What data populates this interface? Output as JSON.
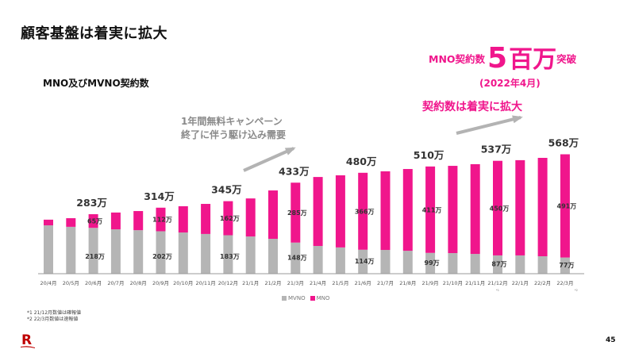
{
  "slide": {
    "title": "顧客基盤は着実に拡大",
    "subtitle": "MNO及びMVNO契約数",
    "page_number": "45",
    "logo_icon": "rakuten-r-logo"
  },
  "headline": {
    "prefix": "MNO契約数",
    "big_number": "5",
    "unit": "百万",
    "suffix": "突破",
    "date": "(2022年4月)",
    "growth_text": "契約数は着実に拡大"
  },
  "annotation": {
    "campaign_line1": "1年間無料キャンペーン",
    "campaign_line2": "終了に伴う駆け込み需要"
  },
  "footnotes": [
    "*1 21/12月数値は確報値",
    "*2 22/3月数値は速報値"
  ],
  "colors": {
    "mno": "#f0168c",
    "mvno": "#b5b5b5",
    "arrow": "#b3b3b3",
    "total_label": "#333333",
    "segment_label": "#333333"
  },
  "chart_data": {
    "type": "bar",
    "stacked": true,
    "title": "MNO及びMVNO契約数",
    "xlabel": "",
    "ylabel": "",
    "unit": "万",
    "categories": [
      "20/4月",
      "20/5月",
      "20/6月",
      "20/7月",
      "20/8月",
      "20/9月",
      "20/10月",
      "20/11月",
      "20/12月",
      "21/1月",
      "21/2月",
      "21/3月",
      "21/4月",
      "21/5月",
      "21/6月",
      "21/7月",
      "21/8月",
      "21/9月",
      "21/10月",
      "21/11月",
      "21/12月",
      "22/1月",
      "22/2月",
      "22/3月"
    ],
    "category_footnote_marks": {
      "20": "*1",
      "23": "*2"
    },
    "series": [
      {
        "name": "MVNO",
        "values": [
          230,
          223,
          218,
          211,
          207,
          202,
          196,
          189,
          183,
          177,
          166,
          148,
          132,
          125,
          114,
          113,
          109,
          99,
          98,
          94,
          87,
          87,
          83,
          77
        ]
      },
      {
        "name": "MNO",
        "values": [
          27,
          41,
          65,
          80,
          91,
          112,
          125,
          143,
          162,
          181,
          230,
          285,
          328,
          343,
          366,
          374,
          389,
          411,
          415,
          427,
          450,
          453,
          468,
          491
        ]
      }
    ],
    "labeled_totals": [
      {
        "index": 2,
        "label": "283万"
      },
      {
        "index": 5,
        "label": "314万"
      },
      {
        "index": 8,
        "label": "345万"
      },
      {
        "index": 11,
        "label": "433万"
      },
      {
        "index": 14,
        "label": "480万"
      },
      {
        "index": 17,
        "label": "510万"
      },
      {
        "index": 20,
        "label": "537万"
      },
      {
        "index": 23,
        "label": "568万"
      }
    ],
    "labeled_segments": [
      {
        "index": 2,
        "mno": "65万",
        "mvno": "218万"
      },
      {
        "index": 5,
        "mno": "112万",
        "mvno": "202万"
      },
      {
        "index": 8,
        "mno": "162万",
        "mvno": "183万"
      },
      {
        "index": 11,
        "mno": "285万",
        "mvno": "148万"
      },
      {
        "index": 14,
        "mno": "366万",
        "mvno": "114万"
      },
      {
        "index": 17,
        "mno": "411万",
        "mvno": "99万"
      },
      {
        "index": 20,
        "mno": "450万",
        "mvno": "87万"
      },
      {
        "index": 23,
        "mno": "491万",
        "mvno": "77万"
      }
    ],
    "ylim": [
      0,
      600
    ],
    "grid": false,
    "y_axis_visible": false,
    "legend": {
      "position": "bottom-center",
      "entries": [
        "MVNO",
        "MNO"
      ]
    }
  }
}
